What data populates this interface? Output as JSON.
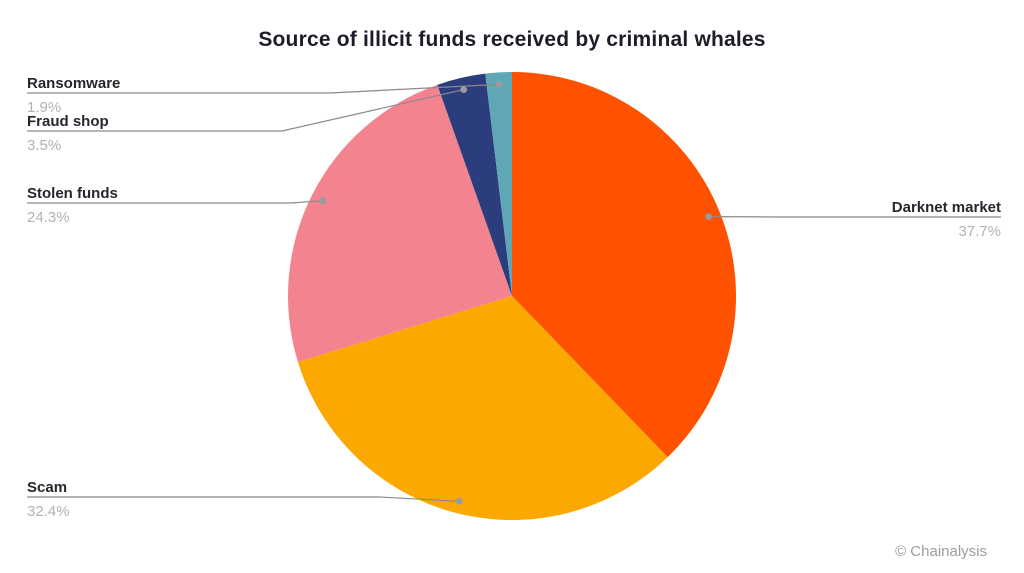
{
  "chart_data": {
    "type": "pie",
    "title": "Source of illicit funds received by criminal whales",
    "direction": "clockwise",
    "start_angle_deg": 0,
    "legend_position": "outside-labels-with-leader-lines",
    "leader_line_color": "#8a8a8a",
    "leader_dot_color": "#9a9aa0",
    "slices": [
      {
        "label": "Darknet market",
        "value": 37.7,
        "pct_label": "37.7%",
        "color": "#FF5201"
      },
      {
        "label": "Scam",
        "value": 32.4,
        "pct_label": "32.4%",
        "color": "#FBA800"
      },
      {
        "label": "Stolen funds",
        "value": 24.3,
        "pct_label": "24.3%",
        "color": "#F2838F"
      },
      {
        "label": "Fraud shop",
        "value": 3.5,
        "pct_label": "3.5%",
        "color": "#2B3D7D"
      },
      {
        "label": "Ransomware",
        "value": 1.9,
        "pct_label": "1.9%",
        "color": "#5FA7B4"
      }
    ],
    "footer": "© Chainalysis"
  }
}
